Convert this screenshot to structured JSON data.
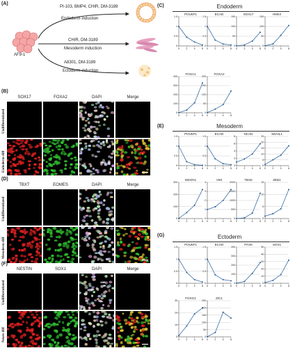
{
  "schematic": {
    "panel": "(A)",
    "cell_label": "AF9-1",
    "arrows": [
      {
        "compounds": "PI-103, BMP4, CHIR, DM-3189",
        "induction": "Endoderm induction"
      },
      {
        "compounds": "CHIR, DM-3189",
        "induction": "Mesoderm induction"
      },
      {
        "compounds": "A8301, DM-3189",
        "induction": "Ectoderm induction"
      }
    ]
  },
  "image_panels": [
    {
      "panel": "(B)",
      "channels": [
        "SOX17",
        "FOXA2",
        "DAPI",
        "Merge"
      ],
      "rows": [
        "Undifferentiated",
        "Endoderm diff"
      ],
      "colors": [
        "#e02020",
        "#30c030"
      ]
    },
    {
      "panel": "(D)",
      "channels": [
        "TBXT",
        "EOMES",
        "DAPI",
        "Merge"
      ],
      "rows": [
        "Undifferentiated",
        "Mesoderm diff"
      ],
      "colors": [
        "#e02020",
        "#30c030"
      ]
    },
    {
      "panel": "(F)",
      "channels": [
        "NESTIN",
        "SOX1",
        "DAPI",
        "Merge"
      ],
      "rows": [
        "Undifferentiated",
        "Neuro diff"
      ],
      "colors": [
        "#e02020",
        "#30c030"
      ]
    }
  ],
  "sections": [
    {
      "panel": "(C)",
      "title": "Endoderm"
    },
    {
      "panel": "(E)",
      "title": "Mesoderm"
    },
    {
      "panel": "(G)",
      "title": "Ectoderm"
    }
  ],
  "chart_data": [
    {
      "type": "line",
      "title": "POU5F1",
      "x": [
        0,
        2,
        4,
        6
      ],
      "y": [
        1.0,
        0.45,
        0.2,
        0.05
      ],
      "ylim": [
        0,
        1.5
      ],
      "yticks": [
        0,
        0.5,
        1.0,
        1.5
      ]
    },
    {
      "type": "line",
      "title": "ECAD",
      "x": [
        0,
        2,
        4,
        6
      ],
      "y": [
        1.0,
        0.3,
        0.1,
        0.05
      ],
      "ylim": [
        0,
        1.5
      ],
      "yticks": [
        0,
        0.5,
        1.0,
        1.5
      ]
    },
    {
      "type": "line",
      "title": "SOX17",
      "x": [
        0,
        2,
        4,
        6
      ],
      "y": [
        1,
        5,
        25,
        70
      ],
      "ylim": [
        0,
        150
      ],
      "yticks": [
        0,
        50,
        100,
        150
      ]
    },
    {
      "type": "line",
      "title": "HHEX",
      "x": [
        0,
        2,
        4,
        6
      ],
      "y": [
        1,
        10,
        55,
        105
      ],
      "ylim": [
        0,
        150
      ],
      "yticks": [
        0,
        50,
        100,
        150
      ]
    },
    {
      "type": "line",
      "title": "FOXA1",
      "x": [
        0,
        2,
        4,
        6
      ],
      "y": [
        1,
        30,
        110,
        330
      ],
      "ylim": [
        0,
        400
      ],
      "yticks": [
        0,
        100,
        200,
        300,
        400
      ]
    },
    {
      "type": "line",
      "title": "FOXA2",
      "x": [
        0,
        2,
        4,
        6
      ],
      "y": [
        1,
        20,
        45,
        120
      ],
      "ylim": [
        0,
        200
      ],
      "yticks": [
        0,
        50,
        100,
        150,
        200
      ]
    },
    {
      "type": "line",
      "title": "POU5F1",
      "x": [
        0,
        2,
        4,
        6
      ],
      "y": [
        1.0,
        0.2,
        0.05,
        0.02
      ],
      "ylim": [
        0,
        1.5
      ],
      "yticks": [
        0,
        0.5,
        1.0,
        1.5
      ]
    },
    {
      "type": "line",
      "title": "ECAD",
      "x": [
        0,
        2,
        4,
        6
      ],
      "y": [
        1.0,
        0.35,
        0.1,
        0.05
      ],
      "ylim": [
        0,
        1.5
      ],
      "yticks": [
        0,
        0.5,
        1.0,
        1.5
      ]
    },
    {
      "type": "line",
      "title": "NCAD",
      "x": [
        0,
        2,
        4,
        6
      ],
      "y": [
        1,
        1.8,
        3.2,
        6
      ],
      "ylim": [
        0,
        8
      ],
      "yticks": [
        0,
        2,
        4,
        6,
        8
      ]
    },
    {
      "type": "line",
      "title": "SNAIL1",
      "x": [
        0,
        2,
        4,
        6
      ],
      "y": [
        1,
        5,
        9,
        17
      ],
      "ylim": [
        0,
        25
      ],
      "yticks": [
        0,
        5,
        10,
        15,
        20,
        25
      ]
    },
    {
      "type": "line",
      "title": "MSGN1",
      "x": [
        0,
        2,
        4,
        6
      ],
      "y": [
        1,
        50,
        110,
        240
      ],
      "ylim": [
        0,
        300
      ],
      "yticks": [
        0,
        100,
        200,
        300
      ]
    },
    {
      "type": "line",
      "title": "VIM",
      "x": [
        0,
        2,
        4,
        6
      ],
      "y": [
        1,
        1.3,
        2.0,
        3.2
      ],
      "ylim": [
        0,
        4
      ],
      "yticks": [
        0,
        1,
        2,
        3,
        4
      ]
    },
    {
      "type": "line",
      "title": "TBX6",
      "x": [
        0,
        2,
        4,
        6
      ],
      "y": [
        1,
        40,
        300,
        1400
      ],
      "ylim": [
        0,
        2000
      ],
      "yticks": [
        0,
        500,
        1000,
        1500,
        2000
      ]
    },
    {
      "type": "line",
      "title": "ZEB1",
      "x": [
        0,
        2,
        4,
        6
      ],
      "y": [
        1,
        2,
        4,
        12
      ],
      "ylim": [
        0,
        15
      ],
      "yticks": [
        0,
        5,
        10,
        15
      ]
    },
    {
      "type": "line",
      "title": "POU5F1",
      "x": [
        0,
        2,
        4,
        6
      ],
      "y": [
        1.0,
        0.45,
        0.15,
        0.05
      ],
      "ylim": [
        0,
        1.5
      ],
      "yticks": [
        0,
        0.5,
        1.0,
        1.5
      ]
    },
    {
      "type": "line",
      "title": "ECAD",
      "x": [
        0,
        2,
        4,
        6
      ],
      "y": [
        1.0,
        0.35,
        0.15,
        0.1
      ],
      "ylim": [
        0,
        1.5
      ],
      "yticks": [
        0,
        0.5,
        1.0,
        1.5
      ]
    },
    {
      "type": "line",
      "title": "PAX6",
      "x": [
        0,
        2,
        4,
        6
      ],
      "y": [
        1,
        20,
        110,
        230
      ],
      "ylim": [
        0,
        400
      ],
      "yticks": [
        0,
        100,
        200,
        300,
        400
      ]
    },
    {
      "type": "line",
      "title": "SOX1",
      "x": [
        0,
        2,
        4,
        6
      ],
      "y": [
        1,
        4,
        12,
        32
      ],
      "ylim": [
        0,
        50
      ],
      "yticks": [
        0,
        10,
        20,
        30,
        40,
        50
      ]
    },
    {
      "type": "line",
      "title": "FOXG1",
      "x": [
        0,
        2,
        4,
        6
      ],
      "y": [
        1,
        9,
        19,
        24
      ],
      "ylim": [
        0,
        30
      ],
      "yticks": [
        0,
        10,
        20,
        30
      ]
    },
    {
      "type": "line",
      "title": "ZIC1",
      "x": [
        0,
        2,
        4,
        6
      ],
      "y": [
        1,
        30,
        170,
        130
      ],
      "ylim": [
        0,
        250
      ],
      "yticks": [
        0,
        50,
        100,
        150,
        200,
        250
      ]
    }
  ]
}
